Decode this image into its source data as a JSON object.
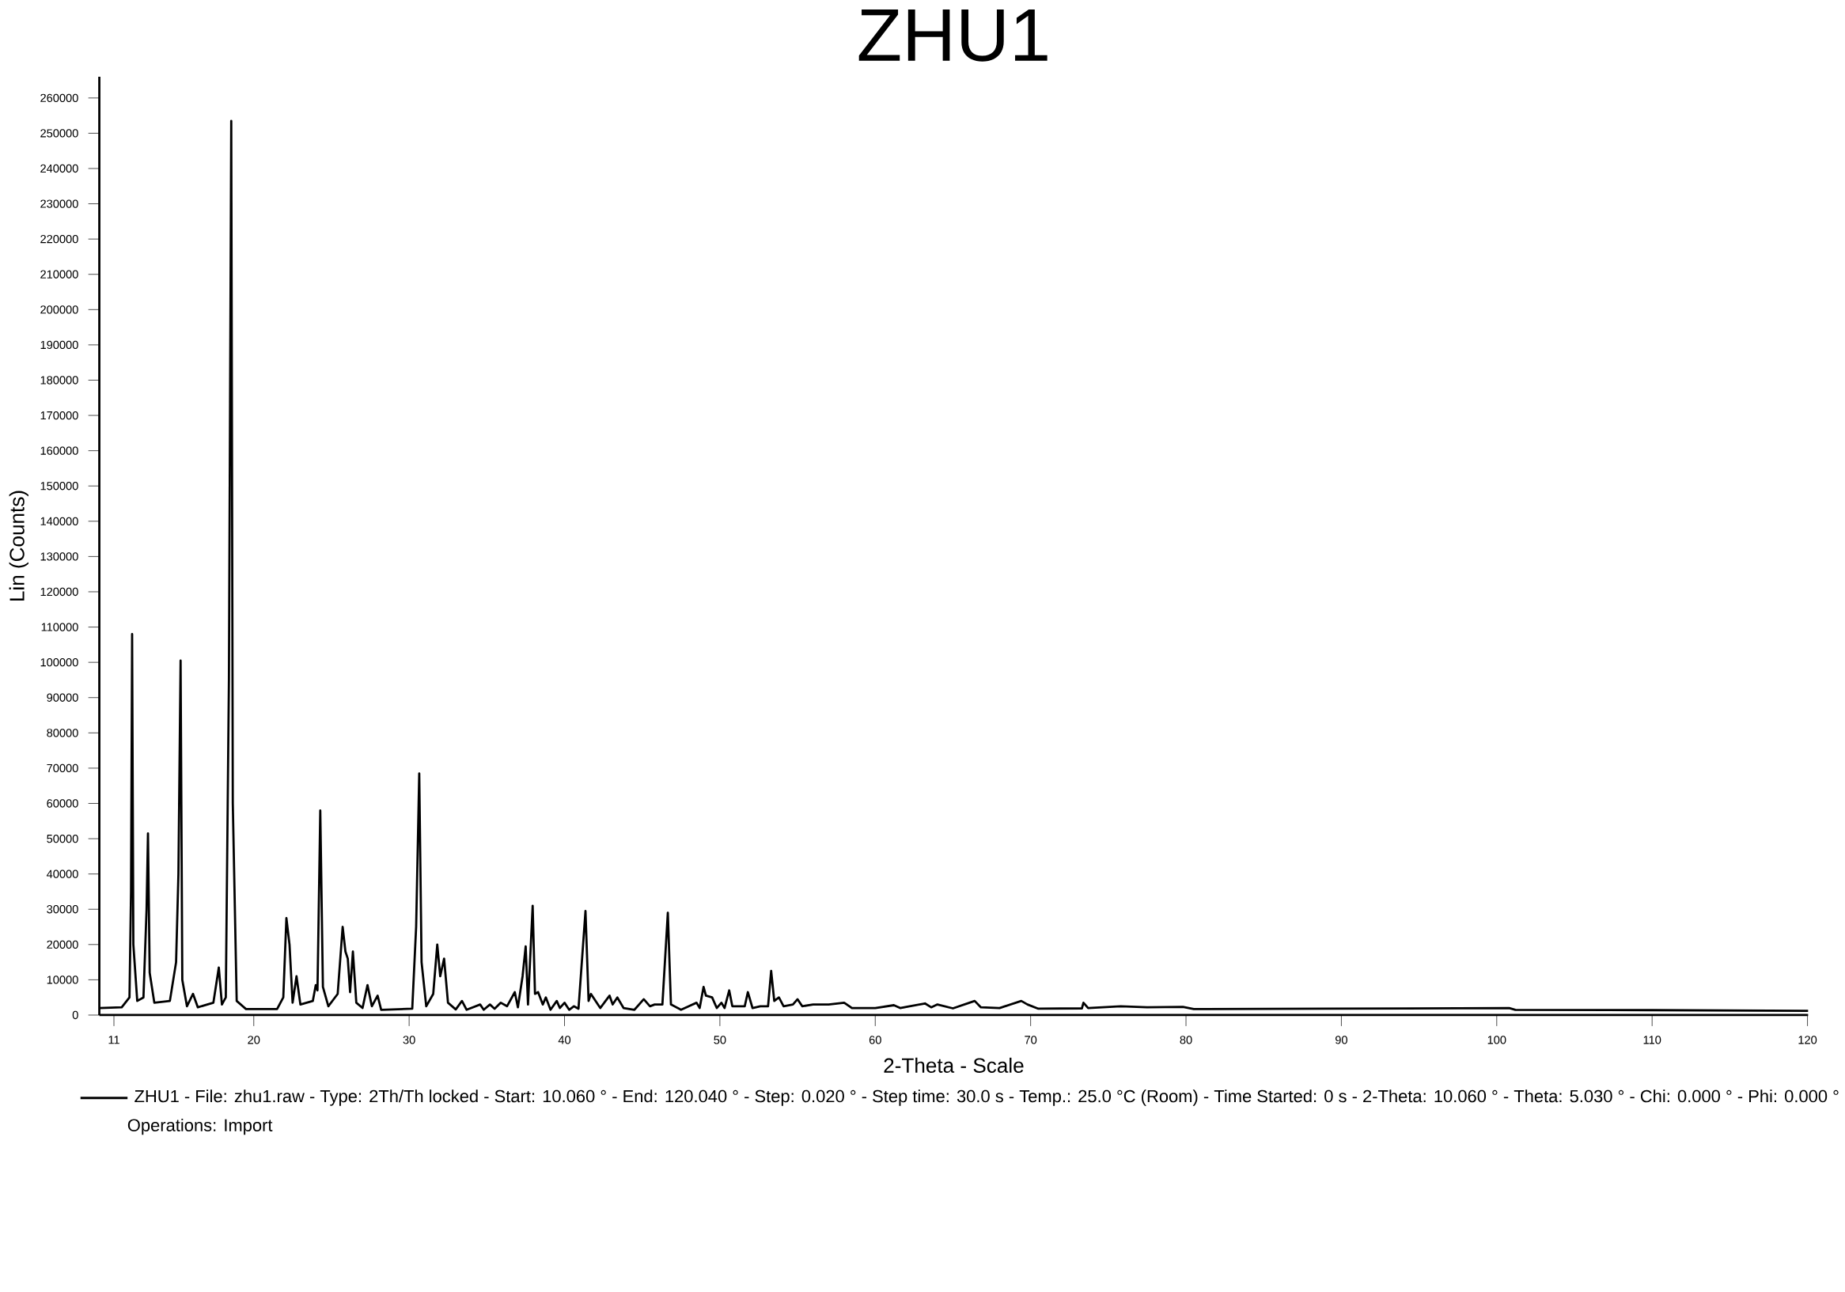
{
  "chart_data": {
    "type": "line",
    "title": "ZHU1",
    "xlabel": "2-Theta - Scale",
    "ylabel": "Lin (Counts)",
    "xlim": [
      10.06,
      120.04
    ],
    "xticks": [
      11,
      20,
      30,
      40,
      50,
      60,
      70,
      80,
      90,
      100,
      110,
      120
    ],
    "ylim": [
      0,
      266000
    ],
    "yticks": [
      0,
      10000,
      20000,
      30000,
      40000,
      50000,
      60000,
      70000,
      80000,
      90000,
      100000,
      110000,
      120000,
      130000,
      140000,
      150000,
      160000,
      170000,
      180000,
      190000,
      200000,
      210000,
      220000,
      230000,
      240000,
      250000,
      260000
    ],
    "legend": "bottom",
    "grid": false,
    "marker": "none",
    "line_style": "solid",
    "annotations": [
      "Operations: Import"
    ],
    "series": [
      {
        "name": "ZHU1 - File: zhu1.raw - Type: 2Th/Th locked - Start: 10.060 ° - End: 120.040 ° - Step: 0.020 ° - Step time: 30.0 s - Temp.: 25.0 °C (Room) - Time Started: 0 s - 2-Theta: 10.060 ° - Theta: 5.030 ° - Chi: 0.000 ° - Phi: 0.000 °",
        "color": "#000000",
        "x": [
          10.06,
          11.5,
          12.0,
          12.1,
          12.17,
          12.25,
          12.5,
          12.9,
          13.1,
          13.19,
          13.3,
          13.6,
          14.6,
          15.0,
          15.15,
          15.29,
          15.4,
          15.7,
          16.09,
          16.4,
          17.4,
          17.75,
          17.95,
          18.2,
          18.4,
          18.55,
          18.65,
          18.9,
          19.5,
          21.5,
          21.9,
          22.1,
          22.3,
          22.5,
          22.75,
          23.0,
          23.8,
          23.99,
          24.1,
          24.28,
          24.45,
          24.8,
          25.4,
          25.72,
          25.9,
          26.05,
          26.2,
          26.38,
          26.6,
          27.0,
          27.32,
          27.6,
          27.97,
          28.2,
          30.2,
          30.45,
          30.65,
          30.8,
          31.1,
          31.55,
          31.81,
          32.0,
          32.25,
          32.5,
          33.0,
          33.4,
          33.7,
          34.57,
          34.8,
          35.2,
          35.5,
          35.9,
          36.3,
          36.8,
          37.0,
          37.3,
          37.5,
          37.65,
          37.95,
          38.1,
          38.3,
          38.6,
          38.8,
          39.1,
          39.5,
          39.7,
          40.0,
          40.3,
          40.6,
          40.9,
          41.35,
          41.55,
          41.7,
          42.3,
          42.9,
          43.1,
          43.4,
          43.8,
          44.5,
          45.1,
          45.5,
          45.8,
          46.3,
          46.65,
          46.85,
          47.5,
          48.5,
          48.7,
          48.95,
          49.1,
          49.5,
          49.8,
          50.1,
          50.3,
          50.6,
          50.8,
          51.6,
          51.8,
          52.1,
          52.6,
          53.1,
          53.3,
          53.5,
          53.8,
          54.1,
          54.7,
          55.0,
          55.3,
          56.0,
          57.0,
          58.0,
          58.5,
          60.0,
          61.2,
          61.6,
          63.2,
          63.6,
          64.0,
          65.0,
          66.4,
          66.8,
          68.0,
          69.4,
          69.8,
          70.5,
          73.3,
          73.4,
          73.7,
          75.8,
          77.5,
          79.8,
          80.5,
          89.0,
          100.8,
          101.2,
          110.0,
          120.04
        ],
        "values": [
          2000,
          2200,
          5000,
          35000,
          108000,
          20000,
          4000,
          5000,
          30000,
          51500,
          12000,
          3500,
          4000,
          15000,
          40000,
          100500,
          10000,
          2500,
          6000,
          2200,
          3500,
          13500,
          3000,
          5000,
          95000,
          253500,
          60000,
          4000,
          1700,
          1700,
          5000,
          27500,
          20000,
          3500,
          11000,
          3000,
          4000,
          8500,
          7000,
          58000,
          8000,
          2500,
          6000,
          25000,
          18000,
          16000,
          6500,
          18000,
          3500,
          2000,
          8500,
          2500,
          5500,
          1500,
          1800,
          25000,
          68500,
          15000,
          2500,
          6000,
          20000,
          11000,
          16000,
          3500,
          1600,
          4000,
          1500,
          3000,
          1500,
          3000,
          1800,
          3500,
          2500,
          6500,
          2200,
          11000,
          19500,
          3000,
          31000,
          6000,
          6500,
          3000,
          5000,
          1500,
          4000,
          2000,
          3500,
          1500,
          2500,
          1800,
          29500,
          4000,
          6000,
          2000,
          5500,
          3000,
          5000,
          2000,
          1500,
          4500,
          2500,
          3000,
          3000,
          29000,
          3000,
          1500,
          3500,
          2000,
          8000,
          5500,
          5000,
          2000,
          3500,
          2000,
          7000,
          2500,
          2500,
          6500,
          2000,
          2500,
          2500,
          12500,
          4000,
          5000,
          2500,
          3000,
          4500,
          2500,
          3000,
          3000,
          3500,
          2000,
          2000,
          2800,
          2000,
          3300,
          2200,
          3000,
          1900,
          4000,
          2200,
          2000,
          4000,
          3000,
          1800,
          1900,
          3500,
          2000,
          2500,
          2200,
          2300,
          1700,
          1800,
          2000,
          1500,
          1400,
          1200
        ]
      }
    ]
  }
}
